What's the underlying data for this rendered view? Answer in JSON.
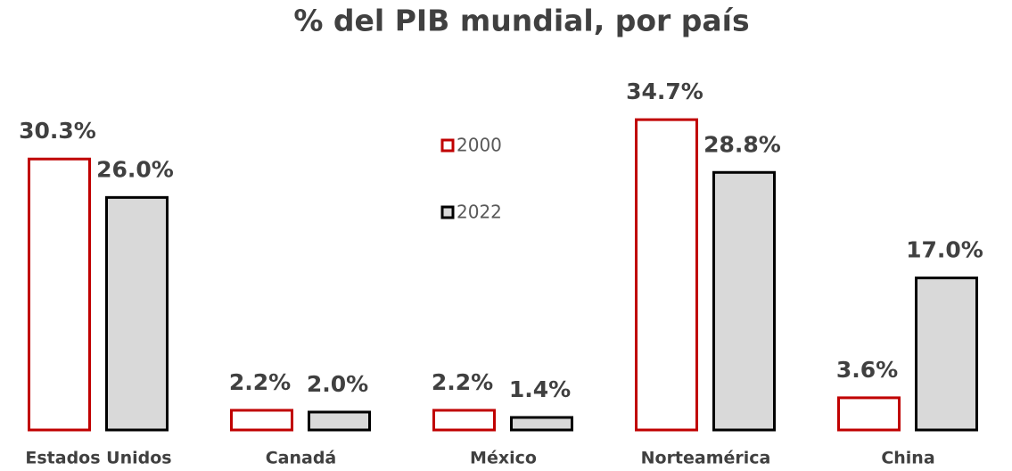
{
  "chart_data": {
    "type": "bar",
    "title": "% del PIB mundial, por país",
    "categories": [
      "Estados Unidos",
      "Canadá",
      "México",
      "Norteamérica",
      "China"
    ],
    "series": [
      {
        "name": "2000",
        "color": "#c00000",
        "fill": "#ffffff",
        "values": [
          30.3,
          2.2,
          2.2,
          34.7,
          3.6
        ],
        "value_labels": [
          "30.3%",
          "2.2%",
          "2.2%",
          "34.7%",
          "3.6%"
        ]
      },
      {
        "name": "2022",
        "color": "#000000",
        "fill": "#d9d9d9",
        "values": [
          26.0,
          2.0,
          1.4,
          28.8,
          17.0
        ],
        "value_labels": [
          "26.0%",
          "2.0%",
          "1.4%",
          "28.8%",
          "17.0%"
        ]
      }
    ],
    "ylim": [
      0,
      40
    ],
    "grid": false
  }
}
